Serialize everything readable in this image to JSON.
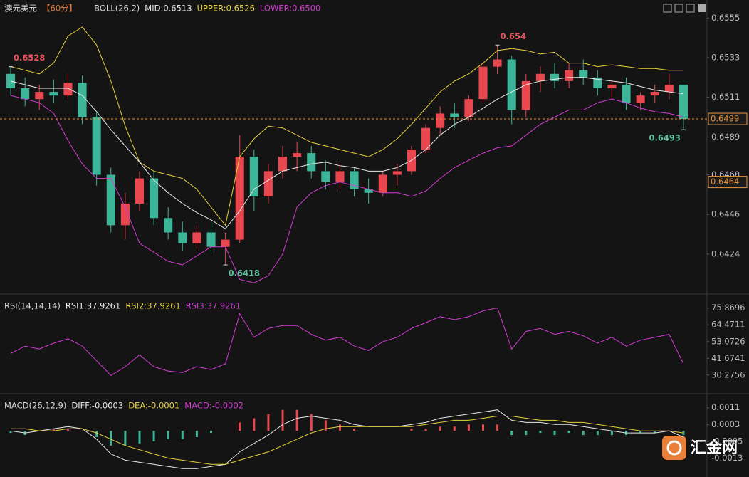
{
  "chart_data": [
    {
      "type": "candlestick",
      "header": [
        {
          "text": "澳元美元",
          "color": "#d8d8d8"
        },
        {
          "text": "【60分】",
          "color": "#e8803a"
        },
        {
          "text": "BOLL(26,2)",
          "color": "#d8d8d8"
        },
        {
          "text": "MID:0.6513",
          "color": "#e8e8e8"
        },
        {
          "text": "UPPER:0.6526",
          "color": "#e6d23c"
        },
        {
          "text": "LOWER:0.6500",
          "color": "#d43bd4"
        }
      ],
      "ylim": [
        0.6403,
        0.6565
      ],
      "yticks": [
        0.6555,
        0.6533,
        0.6511,
        0.6489,
        0.6468,
        0.6446,
        0.6424
      ],
      "up_color": "#e8474f",
      "down_color": "#3db598",
      "ohlc": [
        [
          0.6524,
          0.6528,
          0.6512,
          0.6516
        ],
        [
          0.6516,
          0.6522,
          0.6506,
          0.651
        ],
        [
          0.651,
          0.6518,
          0.6504,
          0.6514
        ],
        [
          0.6514,
          0.6521,
          0.6508,
          0.6512
        ],
        [
          0.6512,
          0.6524,
          0.651,
          0.6519
        ],
        [
          0.6519,
          0.6523,
          0.6496,
          0.65
        ],
        [
          0.65,
          0.6503,
          0.6462,
          0.6468
        ],
        [
          0.6468,
          0.6472,
          0.6436,
          0.644
        ],
        [
          0.644,
          0.6458,
          0.6432,
          0.6452
        ],
        [
          0.6452,
          0.647,
          0.6448,
          0.6466
        ],
        [
          0.6466,
          0.647,
          0.644,
          0.6444
        ],
        [
          0.6444,
          0.645,
          0.6432,
          0.6436
        ],
        [
          0.6436,
          0.6442,
          0.6426,
          0.643
        ],
        [
          0.643,
          0.644,
          0.6427,
          0.6436
        ],
        [
          0.6436,
          0.6442,
          0.6424,
          0.6428
        ],
        [
          0.6428,
          0.6436,
          0.6418,
          0.6432
        ],
        [
          0.6432,
          0.649,
          0.643,
          0.6478
        ],
        [
          0.6478,
          0.6482,
          0.6448,
          0.6456
        ],
        [
          0.6456,
          0.6474,
          0.6452,
          0.647
        ],
        [
          0.647,
          0.6484,
          0.6466,
          0.6478
        ],
        [
          0.6478,
          0.6486,
          0.647,
          0.648
        ],
        [
          0.648,
          0.6484,
          0.6466,
          0.647
        ],
        [
          0.647,
          0.6476,
          0.646,
          0.6464
        ],
        [
          0.6464,
          0.6474,
          0.646,
          0.647
        ],
        [
          0.647,
          0.6472,
          0.6456,
          0.646
        ],
        [
          0.646,
          0.6466,
          0.6452,
          0.6458
        ],
        [
          0.6458,
          0.647,
          0.6456,
          0.6468
        ],
        [
          0.6468,
          0.6474,
          0.6462,
          0.647
        ],
        [
          0.647,
          0.6484,
          0.6468,
          0.6482
        ],
        [
          0.6482,
          0.6496,
          0.648,
          0.6494
        ],
        [
          0.6494,
          0.6506,
          0.649,
          0.6502
        ],
        [
          0.6502,
          0.6508,
          0.6494,
          0.65
        ],
        [
          0.65,
          0.6512,
          0.6498,
          0.651
        ],
        [
          0.651,
          0.653,
          0.6508,
          0.6528
        ],
        [
          0.6528,
          0.654,
          0.6524,
          0.6532
        ],
        [
          0.6532,
          0.6534,
          0.6496,
          0.6504
        ],
        [
          0.6504,
          0.6524,
          0.65,
          0.652
        ],
        [
          0.652,
          0.6528,
          0.6514,
          0.6524
        ],
        [
          0.6524,
          0.653,
          0.6516,
          0.652
        ],
        [
          0.652,
          0.653,
          0.6516,
          0.6526
        ],
        [
          0.6526,
          0.6532,
          0.6518,
          0.6522
        ],
        [
          0.6522,
          0.6526,
          0.6512,
          0.6516
        ],
        [
          0.6516,
          0.652,
          0.651,
          0.6518
        ],
        [
          0.6518,
          0.6522,
          0.6504,
          0.6508
        ],
        [
          0.6508,
          0.6514,
          0.6504,
          0.6512
        ],
        [
          0.6512,
          0.6518,
          0.6508,
          0.6514
        ],
        [
          0.6514,
          0.6524,
          0.651,
          0.6518
        ],
        [
          0.6518,
          0.6518,
          0.6493,
          0.6499
        ]
      ],
      "lines": [
        {
          "color": "#e6d23c",
          "values": [
            0.6528,
            0.6526,
            0.6524,
            0.653,
            0.6545,
            0.655,
            0.654,
            0.652,
            0.6495,
            0.6475,
            0.647,
            0.6468,
            0.6466,
            0.646,
            0.645,
            0.644,
            0.6478,
            0.6488,
            0.6495,
            0.6494,
            0.649,
            0.6486,
            0.6484,
            0.6482,
            0.648,
            0.6478,
            0.6482,
            0.6488,
            0.6496,
            0.6505,
            0.6514,
            0.652,
            0.6524,
            0.653,
            0.6537,
            0.6538,
            0.6537,
            0.6535,
            0.6536,
            0.653,
            0.653,
            0.6528,
            0.6529,
            0.6528,
            0.6527,
            0.6527,
            0.6526,
            0.6526
          ]
        },
        {
          "color": "#e8e8e8",
          "values": [
            0.652,
            0.6518,
            0.6516,
            0.6516,
            0.6516,
            0.6512,
            0.6503,
            0.6493,
            0.6484,
            0.6475,
            0.6465,
            0.6458,
            0.6452,
            0.6447,
            0.6443,
            0.6438,
            0.6448,
            0.646,
            0.6465,
            0.647,
            0.6472,
            0.6474,
            0.6475,
            0.6473,
            0.6472,
            0.647,
            0.647,
            0.6472,
            0.6476,
            0.6482,
            0.649,
            0.6496,
            0.65,
            0.6505,
            0.651,
            0.6514,
            0.6518,
            0.652,
            0.6521,
            0.6522,
            0.6522,
            0.6521,
            0.652,
            0.6519,
            0.6517,
            0.6515,
            0.6514,
            0.6513
          ]
        },
        {
          "color": "#d43bd4",
          "values": [
            0.6512,
            0.651,
            0.6508,
            0.6502,
            0.6487,
            0.6474,
            0.6466,
            0.6466,
            0.645,
            0.643,
            0.6425,
            0.642,
            0.6418,
            0.6423,
            0.6428,
            0.6428,
            0.641,
            0.6408,
            0.6412,
            0.6424,
            0.645,
            0.6458,
            0.6462,
            0.6464,
            0.6462,
            0.646,
            0.6458,
            0.6458,
            0.6456,
            0.6459,
            0.6466,
            0.6472,
            0.6476,
            0.648,
            0.6483,
            0.6484,
            0.649,
            0.6496,
            0.65,
            0.6504,
            0.6504,
            0.6508,
            0.651,
            0.6508,
            0.6505,
            0.6503,
            0.6502,
            0.65
          ]
        }
      ],
      "price_labels": [
        {
          "value": 0.6528,
          "at": 0,
          "color": "#e8545c"
        },
        {
          "value": 0.654,
          "at": 34,
          "color": "#e8545c"
        },
        {
          "value": 0.6418,
          "at": 15,
          "color": "#5fbf9f"
        },
        {
          "value": 0.6493,
          "at": 47,
          "color": "#5fbf9f"
        }
      ],
      "tags": [
        0.6499,
        0.6464
      ],
      "tag_color": "#e8923a"
    },
    {
      "type": "line",
      "header": [
        {
          "text": "RSI(14,14,14)",
          "color": "#d8d8d8"
        },
        {
          "text": "RSI1:37.9261",
          "color": "#e8e8e8"
        },
        {
          "text": "RSI2:37.9261",
          "color": "#e6d23c"
        },
        {
          "text": "RSI3:37.9261",
          "color": "#d43bd4"
        }
      ],
      "ylim": [
        20,
        83
      ],
      "yticks": [
        75.8696,
        64.4711,
        53.0726,
        41.6741,
        30.2756
      ],
      "series": [
        {
          "color": "#d43bd4",
          "values": [
            45,
            50,
            48,
            52,
            55,
            50,
            40,
            30,
            36,
            44,
            36,
            33,
            32,
            36,
            34,
            38,
            72,
            56,
            62,
            64,
            64,
            58,
            54,
            56,
            50,
            47,
            53,
            56,
            62,
            66,
            70,
            68,
            70,
            74,
            76,
            48,
            60,
            62,
            58,
            60,
            57,
            52,
            56,
            50,
            54,
            56,
            58,
            38
          ]
        }
      ]
    },
    {
      "type": "macd",
      "header": [
        {
          "text": "MACD(26,12,9)",
          "color": "#d8d8d8"
        },
        {
          "text": "DIFF:-0.0003",
          "color": "#e8e8e8"
        },
        {
          "text": "DEA:-0.0001",
          "color": "#e6d23c"
        },
        {
          "text": "MACD:-0.0002",
          "color": "#d43bd4"
        }
      ],
      "ylim": [
        -0.0022,
        0.0016
      ],
      "yticks": [
        0.0011,
        0.0003,
        -0.0005,
        -0.0013
      ],
      "hist": {
        "up_color": "#e8474f",
        "down_color": "#3db598",
        "values": [
          -0.0001,
          -0.0002,
          0,
          0.0001,
          0.0001,
          0,
          -0.0003,
          -0.0007,
          -0.0007,
          -0.0006,
          -0.0005,
          -0.0004,
          -0.0004,
          -0.0003,
          -0.0001,
          0,
          0.0004,
          0.0006,
          0.0008,
          0.001,
          0.001,
          0.0008,
          0.0005,
          0.0003,
          0.0001,
          0,
          0,
          0,
          0.0001,
          0.0001,
          0.0002,
          0.0002,
          0.0003,
          0.0003,
          0.0003,
          -0.0002,
          -0.0002,
          -0.0001,
          -0.0002,
          -0.0001,
          -0.0002,
          -0.0002,
          -0.0002,
          -0.0002,
          -0.0001,
          -0.0001,
          0,
          -0.0002
        ]
      },
      "series": [
        {
          "color": "#e8e8e8",
          "values": [
            0,
            -0.0001,
            0,
            0.0001,
            0.0002,
            0.0001,
            -0.0004,
            -0.0011,
            -0.0014,
            -0.0015,
            -0.0016,
            -0.0017,
            -0.0018,
            -0.0018,
            -0.0017,
            -0.0016,
            -0.001,
            -0.0006,
            -0.0002,
            0.0003,
            0.0006,
            0.0007,
            0.0006,
            0.0005,
            0.0003,
            0.0002,
            0.0002,
            0.0002,
            0.0003,
            0.0004,
            0.0006,
            0.0007,
            0.0008,
            0.0009,
            0.001,
            0.0005,
            0.0004,
            0.0004,
            0.0003,
            0.0003,
            0.0002,
            0.0001,
            0,
            -0.0001,
            -0.0001,
            -0.0001,
            0,
            -0.0003
          ]
        },
        {
          "color": "#e6d23c",
          "values": [
            0.0001,
            0.0001,
            0,
            0,
            0.0001,
            0.0001,
            -0.0001,
            -0.0004,
            -0.0007,
            -0.0009,
            -0.0011,
            -0.0013,
            -0.0014,
            -0.0015,
            -0.0016,
            -0.0016,
            -0.0014,
            -0.0012,
            -0.001,
            -0.0007,
            -0.0004,
            -0.0001,
            0.0001,
            0.0002,
            0.0002,
            0.0002,
            0.0002,
            0.0002,
            0.0002,
            0.0003,
            0.0004,
            0.0005,
            0.0005,
            0.0006,
            0.0007,
            0.0007,
            0.0006,
            0.0005,
            0.0005,
            0.0004,
            0.0004,
            0.0003,
            0.0002,
            0.0001,
            0,
            0,
            0,
            -0.0001
          ]
        }
      ]
    }
  ],
  "watermark": "汇金网"
}
